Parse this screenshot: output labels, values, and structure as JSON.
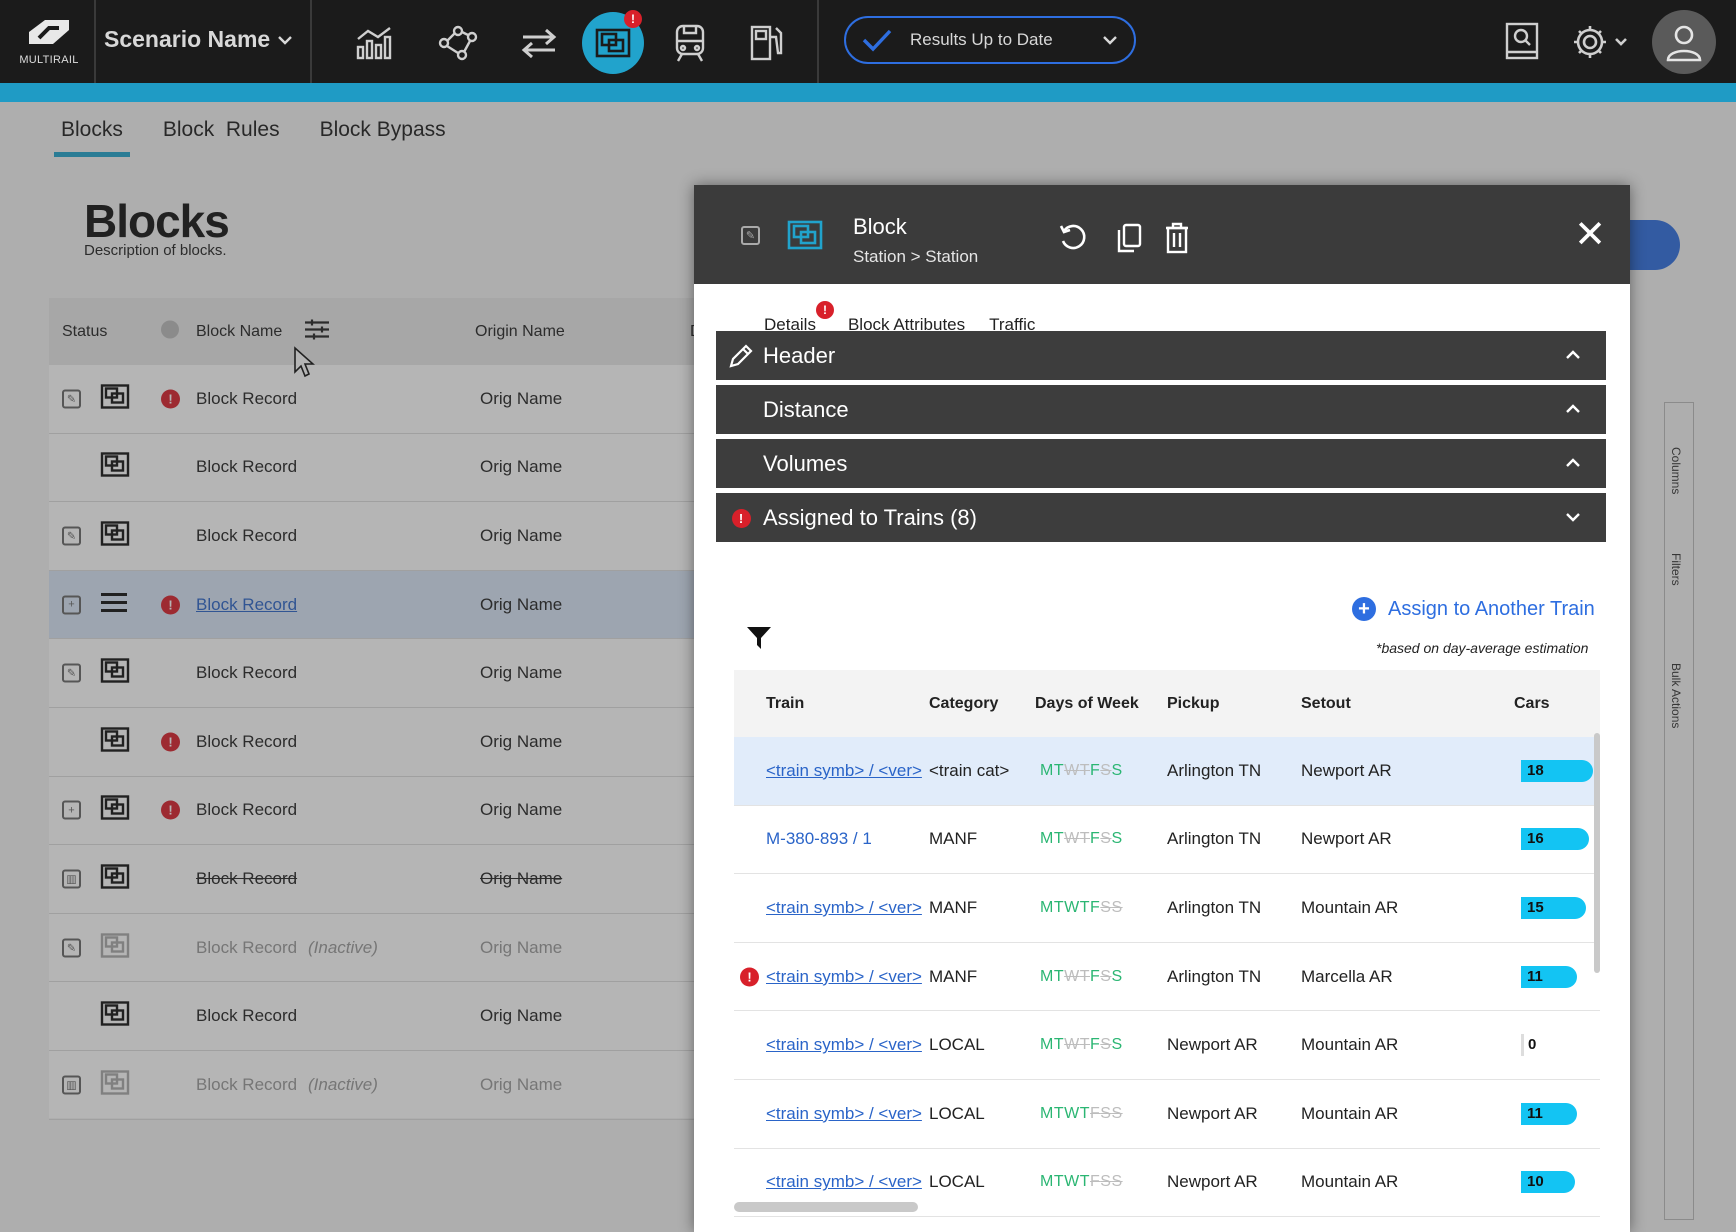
{
  "app": {
    "logo_text": "MULTIRAIL",
    "scenario": "Scenario Name",
    "status": "Results Up to Date",
    "nav_icons": [
      "analytics-icon",
      "network-icon",
      "transfer-icon",
      "blocks-icon",
      "train-icon",
      "fuel-icon"
    ],
    "nav_badge": "!",
    "right_icons": [
      "book-search-icon",
      "settings-icon",
      "user-icon"
    ]
  },
  "subtabs": [
    "Blocks",
    "Block  Rules",
    "Block Bypass"
  ],
  "page": {
    "title": "Blocks",
    "description": "Description of blocks."
  },
  "grid": {
    "columns": {
      "status": "Status",
      "block_name": "Block Name",
      "origin_name": "Origin Name",
      "extra": "D"
    },
    "rows": [
      {
        "check": "edit",
        "icon": "block",
        "error": true,
        "name": "Block Record",
        "origin": "Orig Name",
        "state": "normal",
        "inactive_label": ""
      },
      {
        "check": "",
        "icon": "block",
        "error": false,
        "name": "Block Record",
        "origin": "Orig Name",
        "state": "normal",
        "inactive_label": ""
      },
      {
        "check": "edit",
        "icon": "block",
        "error": false,
        "name": "Block Record",
        "origin": "Orig Name",
        "state": "normal",
        "inactive_label": ""
      },
      {
        "check": "add",
        "icon": "list",
        "error": true,
        "name": "Block Record",
        "origin": "Orig Name",
        "state": "selected",
        "inactive_label": ""
      },
      {
        "check": "edit",
        "icon": "block",
        "error": false,
        "name": "Block Record",
        "origin": "Orig Name",
        "state": "normal",
        "inactive_label": ""
      },
      {
        "check": "",
        "icon": "block",
        "error": true,
        "name": "Block Record",
        "origin": "Orig Name",
        "state": "normal",
        "inactive_label": ""
      },
      {
        "check": "add",
        "icon": "block",
        "error": true,
        "name": "Block Record",
        "origin": "Orig Name",
        "state": "normal",
        "inactive_label": ""
      },
      {
        "check": "delete",
        "icon": "block",
        "error": false,
        "name": "Block Record",
        "origin": "Orig Name",
        "state": "deleted",
        "inactive_label": ""
      },
      {
        "check": "edit",
        "icon": "block",
        "error": false,
        "name": "Block Record",
        "origin": "Orig Name",
        "state": "inactive",
        "inactive_label": "(Inactive)"
      },
      {
        "check": "",
        "icon": "block",
        "error": false,
        "name": "Block Record",
        "origin": "Orig Name",
        "state": "normal",
        "inactive_label": ""
      },
      {
        "check": "delete",
        "icon": "block",
        "error": false,
        "name": "Block Record",
        "origin": "Orig Name",
        "state": "inactive",
        "inactive_label": "(Inactive)"
      }
    ]
  },
  "rail": [
    "Columns",
    "Filters",
    "Bulk Actions"
  ],
  "drawer": {
    "title": "Block",
    "subtitle": "Station > Station",
    "tabs": [
      {
        "label": "Details",
        "active": true,
        "badge": "!"
      },
      {
        "label": "Block Attributes",
        "active": false,
        "badge": ""
      },
      {
        "label": "Traffic",
        "active": false,
        "badge": ""
      }
    ],
    "sections": [
      {
        "label": "Header",
        "expanded": true,
        "lead": "pencil"
      },
      {
        "label": "Distance",
        "expanded": true,
        "lead": ""
      },
      {
        "label": "Volumes",
        "expanded": true,
        "lead": ""
      },
      {
        "label": "Assigned to Trains (8)",
        "expanded": false,
        "lead": "error"
      }
    ],
    "assign_label": "Assign to Another Train",
    "note": "*based on day-average estimation",
    "table": {
      "columns": [
        "Train",
        "Category",
        "Days of Week",
        "Pickup",
        "Setout",
        "Cars"
      ],
      "rows": [
        {
          "train": "<train symb> / <ver>",
          "link_underline": true,
          "category": "<train cat>",
          "days": "MTWTFSS",
          "off": [
            2,
            3,
            5
          ],
          "pickup": "Arlington TN",
          "setout": "Newport AR",
          "cars": 18,
          "error": false,
          "selected": true
        },
        {
          "train": "M-380-893 / 1",
          "link_underline": false,
          "category": "MANF",
          "days": "MTWTFSS",
          "off": [
            2,
            3,
            5
          ],
          "pickup": "Arlington TN",
          "setout": "Newport AR",
          "cars": 16,
          "error": false,
          "selected": false
        },
        {
          "train": "<train symb> / <ver>",
          "link_underline": true,
          "category": "MANF",
          "days": "MTWTFSS",
          "off": [
            5,
            6
          ],
          "pickup": "Arlington TN",
          "setout": "Mountain AR",
          "cars": 15,
          "error": false,
          "selected": false
        },
        {
          "train": "<train symb> / <ver>",
          "link_underline": true,
          "category": "MANF",
          "days": "MTWTFSS",
          "off": [
            2,
            3,
            5
          ],
          "pickup": "Arlington TN",
          "setout": "Marcella AR",
          "cars": 11,
          "error": true,
          "selected": false
        },
        {
          "train": "<train symb> / <ver>",
          "link_underline": true,
          "category": "LOCAL",
          "days": "MTWTFSS",
          "off": [
            2,
            3,
            5
          ],
          "pickup": "Newport AR",
          "setout": "Mountain AR",
          "cars": 0,
          "error": false,
          "selected": false
        },
        {
          "train": "<train symb> / <ver>",
          "link_underline": true,
          "category": "LOCAL",
          "days": "MTWTFSS",
          "off": [
            4,
            5,
            6
          ],
          "pickup": "Newport AR",
          "setout": "Mountain AR",
          "cars": 11,
          "error": false,
          "selected": false
        },
        {
          "train": "<train symb> / <ver>",
          "link_underline": true,
          "category": "LOCAL",
          "days": "MTWTFSS",
          "off": [
            4,
            5,
            6
          ],
          "pickup": "Newport AR",
          "setout": "Mountain AR",
          "cars": 10,
          "error": false,
          "selected": false
        }
      ],
      "max_cars": 18
    }
  },
  "colors": {
    "accent": "#1fa3cc",
    "link": "#2e6ee0",
    "error": "#d8202a",
    "days_on": "#2bb673",
    "cars_bar": "#13c4f3"
  }
}
